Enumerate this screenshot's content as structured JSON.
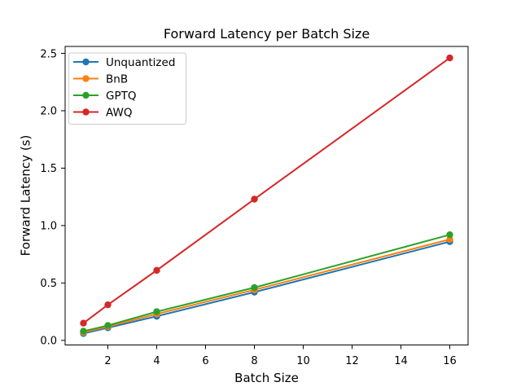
{
  "chart_data": {
    "type": "line",
    "title": "Forward Latency per Batch Size",
    "xlabel": "Batch Size",
    "ylabel": "Forward Latency (s)",
    "x": [
      1,
      2,
      4,
      8,
      16
    ],
    "series": [
      {
        "name": "Unquantized",
        "color": "#1f77b4",
        "values": [
          0.06,
          0.11,
          0.21,
          0.42,
          0.86
        ]
      },
      {
        "name": "BnB",
        "color": "#ff7f0e",
        "values": [
          0.07,
          0.12,
          0.23,
          0.44,
          0.88
        ]
      },
      {
        "name": "GPTQ",
        "color": "#2ca02c",
        "values": [
          0.08,
          0.13,
          0.25,
          0.46,
          0.92
        ]
      },
      {
        "name": "AWQ",
        "color": "#d62728",
        "values": [
          0.15,
          0.31,
          0.61,
          1.23,
          2.46
        ]
      }
    ],
    "xticks": [
      2,
      4,
      6,
      8,
      10,
      12,
      14,
      16
    ],
    "yticks": [
      0.0,
      0.5,
      1.0,
      1.5,
      2.0,
      2.5
    ],
    "xlim": [
      0.25,
      16.75
    ],
    "ylim": [
      -0.04,
      2.56
    ],
    "grid": false,
    "marker": "o",
    "legend_position": "upper left",
    "legend_border_color": "#cccccc",
    "spine_color": "#000000",
    "background_color": "#ffffff"
  }
}
